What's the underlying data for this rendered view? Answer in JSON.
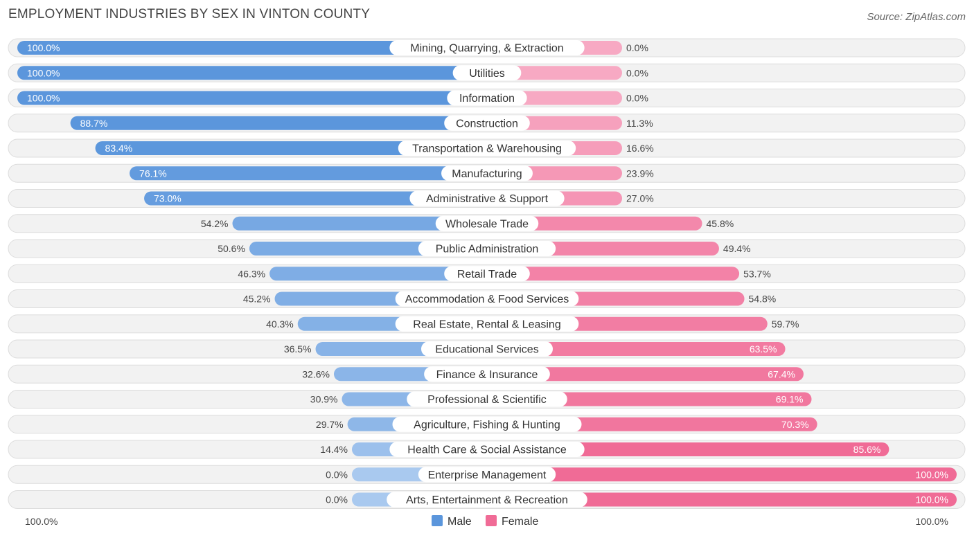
{
  "title": "EMPLOYMENT INDUSTRIES BY SEX IN VINTON COUNTY",
  "source": "Source: ZipAtlas.com",
  "chart_data": {
    "type": "bar",
    "orientation": "horizontal-diverging",
    "categories": [
      "Mining, Quarrying, & Extraction",
      "Utilities",
      "Information",
      "Construction",
      "Transportation & Warehousing",
      "Manufacturing",
      "Administrative & Support",
      "Wholesale Trade",
      "Public Administration",
      "Retail Trade",
      "Accommodation & Food Services",
      "Real Estate, Rental & Leasing",
      "Educational Services",
      "Finance & Insurance",
      "Professional & Scientific",
      "Agriculture, Fishing & Hunting",
      "Health Care & Social Assistance",
      "Enterprise Management",
      "Arts, Entertainment & Recreation"
    ],
    "series": [
      {
        "name": "Male",
        "color": "#5b96dc",
        "values": [
          100.0,
          100.0,
          100.0,
          88.7,
          83.4,
          76.1,
          73.0,
          54.2,
          50.6,
          46.3,
          45.2,
          40.3,
          36.5,
          32.6,
          30.9,
          29.7,
          14.4,
          0.0,
          0.0
        ],
        "labels": [
          "100.0%",
          "100.0%",
          "100.0%",
          "88.7%",
          "83.4%",
          "76.1%",
          "73.0%",
          "54.2%",
          "50.6%",
          "46.3%",
          "45.2%",
          "40.3%",
          "36.5%",
          "32.6%",
          "30.9%",
          "29.7%",
          "14.4%",
          "0.0%",
          "0.0%"
        ]
      },
      {
        "name": "Female",
        "color": "#f06b96",
        "values": [
          0.0,
          0.0,
          0.0,
          11.3,
          16.6,
          23.9,
          27.0,
          45.8,
          49.4,
          53.7,
          54.8,
          59.7,
          63.5,
          67.4,
          69.1,
          70.3,
          85.6,
          100.0,
          100.0
        ],
        "labels": [
          "0.0%",
          "0.0%",
          "0.0%",
          "11.3%",
          "16.6%",
          "23.9%",
          "27.0%",
          "45.8%",
          "49.4%",
          "53.7%",
          "54.8%",
          "59.7%",
          "63.5%",
          "67.4%",
          "69.1%",
          "70.3%",
          "85.6%",
          "100.0%",
          "100.0%"
        ]
      }
    ],
    "xlim": [
      0,
      100
    ],
    "axis_labels": {
      "left": "100.0%",
      "right": "100.0%"
    },
    "legend": {
      "position": "bottom-center",
      "items": [
        "Male",
        "Female"
      ]
    }
  }
}
